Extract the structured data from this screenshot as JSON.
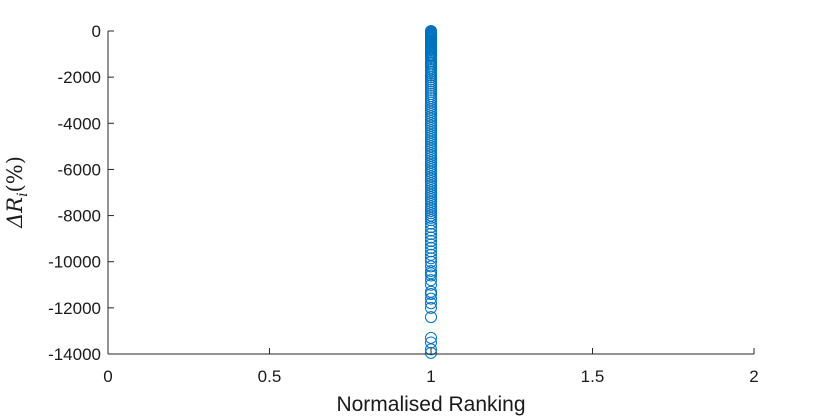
{
  "chart_data": {
    "type": "scatter",
    "title": "",
    "xlabel": "Normalised Ranking",
    "ylabel": "ΔR_i(%)",
    "ylabel_display": "ΔRi(%)",
    "xlim": [
      0,
      2
    ],
    "ylim": [
      -14000,
      0
    ],
    "xticks": [
      0,
      0.5,
      1,
      1.5,
      2
    ],
    "xtick_labels": [
      "0",
      "0.5",
      "1",
      "1.5",
      "2"
    ],
    "yticks": [
      0,
      -2000,
      -4000,
      -6000,
      -8000,
      -10000,
      -12000,
      -14000
    ],
    "ytick_labels": [
      "0",
      "-2000",
      "-4000",
      "-6000",
      "-8000",
      "-10000",
      "-12000",
      "-14000"
    ],
    "grid": false,
    "marker": "circle-open",
    "color": "#0072BD",
    "series": [
      {
        "x_constant": 1,
        "y": [
          0,
          -20,
          -40,
          -60,
          -80,
          -100,
          -130,
          -160,
          -190,
          -220,
          -250,
          -280,
          -310,
          -350,
          -390,
          -430,
          -470,
          -510,
          -550,
          -600,
          -650,
          -700,
          -750,
          -800,
          -860,
          -920,
          -980,
          -1040,
          -1100,
          -1170,
          -1240,
          -1310,
          -1380,
          -1450,
          -1530,
          -1610,
          -1690,
          -1770,
          -1850,
          -1930,
          -2010,
          -2100,
          -2190,
          -2280,
          -2370,
          -2460,
          -2550,
          -2640,
          -2730,
          -2820,
          -2910,
          -3000,
          -3100,
          -3200,
          -3300,
          -3400,
          -3500,
          -3600,
          -3700,
          -3800,
          -3900,
          -4000,
          -4100,
          -4200,
          -4300,
          -4400,
          -4500,
          -4600,
          -4700,
          -4800,
          -4900,
          -5000,
          -5100,
          -5200,
          -5300,
          -5400,
          -5500,
          -5600,
          -5700,
          -5800,
          -5900,
          -6000,
          -6100,
          -6200,
          -6300,
          -6400,
          -6500,
          -6600,
          -6700,
          -6800,
          -6900,
          -7000,
          -7100,
          -7200,
          -7300,
          -7400,
          -7500,
          -7600,
          -7700,
          -7800,
          -7900,
          -8000,
          -8100,
          -8200,
          -8350,
          -8500,
          -8650,
          -8800,
          -8950,
          -9100,
          -9250,
          -9400,
          -9550,
          -9700,
          -9850,
          -10000,
          -10200,
          -10400,
          -10500,
          -10600,
          -10800,
          -11000,
          -11300,
          -11400,
          -11600,
          -11800,
          -12000,
          -12400,
          -13300,
          -13500,
          -13800,
          -13950
        ]
      }
    ]
  }
}
